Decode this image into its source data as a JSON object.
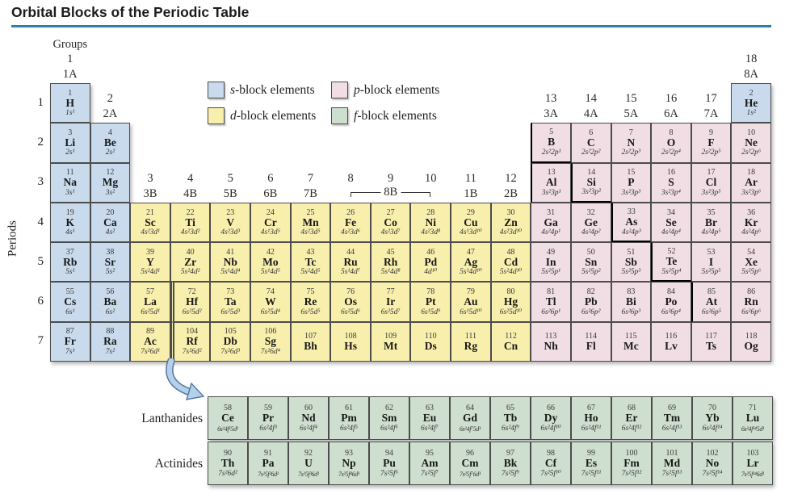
{
  "header": {
    "title": "Orbital Blocks of the Periodic Table"
  },
  "labels": {
    "periods": "Periods",
    "bracket_8b": "8B"
  },
  "colors": {
    "s": "#c8daeb",
    "p": "#f0dee4",
    "d": "#f9efad",
    "f": "#cfdfcf",
    "rule": "#2c80a8",
    "arrow_fill": "#b5d0eb",
    "arrow_outline": "#54779f",
    "staircase": "#000000",
    "cell_border": "#4c4c4c"
  },
  "legend": [
    {
      "prefix": "s",
      "text": "-block elements",
      "block": "s"
    },
    {
      "prefix": "p",
      "text": "-block elements",
      "block": "p"
    },
    {
      "prefix": "d",
      "text": "-block elements",
      "block": "d"
    },
    {
      "prefix": "f",
      "text": "-block elements",
      "block": "f"
    }
  ],
  "period_numbers": [
    "1",
    "2",
    "3",
    "4",
    "5",
    "6",
    "7"
  ],
  "group_headers": [
    {
      "col": 1,
      "lines": [
        "Groups",
        "1",
        "1A"
      ],
      "tier": 1
    },
    {
      "col": 2,
      "lines": [
        "2",
        "2A"
      ],
      "tier": 2
    },
    {
      "col": 3,
      "lines": [
        "3",
        "3B"
      ],
      "tier": 4
    },
    {
      "col": 4,
      "lines": [
        "4",
        "4B"
      ],
      "tier": 4
    },
    {
      "col": 5,
      "lines": [
        "5",
        "5B"
      ],
      "tier": 4
    },
    {
      "col": 6,
      "lines": [
        "6",
        "6B"
      ],
      "tier": 4
    },
    {
      "col": 7,
      "lines": [
        "7",
        "7B"
      ],
      "tier": 4
    },
    {
      "col": 8,
      "lines": [
        "8"
      ],
      "tier": 4
    },
    {
      "col": 9,
      "lines": [
        "9"
      ],
      "tier": 4
    },
    {
      "col": 10,
      "lines": [
        "10"
      ],
      "tier": 4
    },
    {
      "col": 11,
      "lines": [
        "11",
        "1B"
      ],
      "tier": 4
    },
    {
      "col": 12,
      "lines": [
        "12",
        "2B"
      ],
      "tier": 4
    },
    {
      "col": 13,
      "lines": [
        "13",
        "3A"
      ],
      "tier": 2
    },
    {
      "col": 14,
      "lines": [
        "14",
        "4A"
      ],
      "tier": 2
    },
    {
      "col": 15,
      "lines": [
        "15",
        "5A"
      ],
      "tier": 2
    },
    {
      "col": 16,
      "lines": [
        "16",
        "6A"
      ],
      "tier": 2
    },
    {
      "col": 17,
      "lines": [
        "17",
        "7A"
      ],
      "tier": 2
    },
    {
      "col": 18,
      "lines": [
        "18",
        "8A"
      ],
      "tier": 1
    }
  ],
  "bracket": {
    "label": "8B",
    "from_col": 8,
    "to_col": 10
  },
  "elements": [
    {
      "n": 1,
      "s": "H",
      "c": "1s¹",
      "p": 1,
      "g": 1,
      "b": "s"
    },
    {
      "n": 2,
      "s": "He",
      "c": "1s²",
      "p": 1,
      "g": 18,
      "b": "s"
    },
    {
      "n": 3,
      "s": "Li",
      "c": "2s¹",
      "p": 2,
      "g": 1,
      "b": "s"
    },
    {
      "n": 4,
      "s": "Be",
      "c": "2s²",
      "p": 2,
      "g": 2,
      "b": "s"
    },
    {
      "n": 5,
      "s": "B",
      "c": "2s²2p¹",
      "p": 2,
      "g": 13,
      "b": "p",
      "e": "lb"
    },
    {
      "n": 6,
      "s": "C",
      "c": "2s²2p²",
      "p": 2,
      "g": 14,
      "b": "p"
    },
    {
      "n": 7,
      "s": "N",
      "c": "2s²2p³",
      "p": 2,
      "g": 15,
      "b": "p"
    },
    {
      "n": 8,
      "s": "O",
      "c": "2s²2p⁴",
      "p": 2,
      "g": 16,
      "b": "p"
    },
    {
      "n": 9,
      "s": "F",
      "c": "2s²2p⁵",
      "p": 2,
      "g": 17,
      "b": "p"
    },
    {
      "n": 10,
      "s": "Ne",
      "c": "2s²2p⁶",
      "p": 2,
      "g": 18,
      "b": "p"
    },
    {
      "n": 11,
      "s": "Na",
      "c": "3s¹",
      "p": 3,
      "g": 1,
      "b": "s"
    },
    {
      "n": 12,
      "s": "Mg",
      "c": "3s²",
      "p": 3,
      "g": 2,
      "b": "s"
    },
    {
      "n": 13,
      "s": "Al",
      "c": "3s²3p¹",
      "p": 3,
      "g": 13,
      "b": "p",
      "e": "l"
    },
    {
      "n": 14,
      "s": "Si",
      "c": "3s²3p²",
      "p": 3,
      "g": 14,
      "b": "p",
      "e": "lb"
    },
    {
      "n": 15,
      "s": "P",
      "c": "3s²3p³",
      "p": 3,
      "g": 15,
      "b": "p"
    },
    {
      "n": 16,
      "s": "S",
      "c": "3s²3p⁴",
      "p": 3,
      "g": 16,
      "b": "p"
    },
    {
      "n": 17,
      "s": "Cl",
      "c": "3s²3p⁵",
      "p": 3,
      "g": 17,
      "b": "p"
    },
    {
      "n": 18,
      "s": "Ar",
      "c": "3s²3p⁶",
      "p": 3,
      "g": 18,
      "b": "p"
    },
    {
      "n": 19,
      "s": "K",
      "c": "4s¹",
      "p": 4,
      "g": 1,
      "b": "s"
    },
    {
      "n": 20,
      "s": "Ca",
      "c": "4s²",
      "p": 4,
      "g": 2,
      "b": "s"
    },
    {
      "n": 21,
      "s": "Sc",
      "c": "4s²3d¹",
      "p": 4,
      "g": 3,
      "b": "d"
    },
    {
      "n": 22,
      "s": "Ti",
      "c": "4s²3d²",
      "p": 4,
      "g": 4,
      "b": "d"
    },
    {
      "n": 23,
      "s": "V",
      "c": "4s²3d³",
      "p": 4,
      "g": 5,
      "b": "d"
    },
    {
      "n": 24,
      "s": "Cr",
      "c": "4s¹3d⁵",
      "p": 4,
      "g": 6,
      "b": "d"
    },
    {
      "n": 25,
      "s": "Mn",
      "c": "4s²3d⁵",
      "p": 4,
      "g": 7,
      "b": "d"
    },
    {
      "n": 26,
      "s": "Fe",
      "c": "4s²3d⁶",
      "p": 4,
      "g": 8,
      "b": "d"
    },
    {
      "n": 27,
      "s": "Co",
      "c": "4s²3d⁷",
      "p": 4,
      "g": 9,
      "b": "d"
    },
    {
      "n": 28,
      "s": "Ni",
      "c": "4s²3d⁸",
      "p": 4,
      "g": 10,
      "b": "d"
    },
    {
      "n": 29,
      "s": "Cu",
      "c": "4s¹3d¹⁰",
      "p": 4,
      "g": 11,
      "b": "d"
    },
    {
      "n": 30,
      "s": "Zn",
      "c": "4s²3d¹⁰",
      "p": 4,
      "g": 12,
      "b": "d"
    },
    {
      "n": 31,
      "s": "Ga",
      "c": "4s²4p¹",
      "p": 4,
      "g": 13,
      "b": "p"
    },
    {
      "n": 32,
      "s": "Ge",
      "c": "4s²4p²",
      "p": 4,
      "g": 14,
      "b": "p"
    },
    {
      "n": 33,
      "s": "As",
      "c": "4s²4p³",
      "p": 4,
      "g": 15,
      "b": "p",
      "e": "lb"
    },
    {
      "n": 34,
      "s": "Se",
      "c": "4s²4p⁴",
      "p": 4,
      "g": 16,
      "b": "p"
    },
    {
      "n": 35,
      "s": "Br",
      "c": "4s²4p⁵",
      "p": 4,
      "g": 17,
      "b": "p"
    },
    {
      "n": 36,
      "s": "Kr",
      "c": "4s²4p⁶",
      "p": 4,
      "g": 18,
      "b": "p"
    },
    {
      "n": 37,
      "s": "Rb",
      "c": "5s¹",
      "p": 5,
      "g": 1,
      "b": "s"
    },
    {
      "n": 38,
      "s": "Sr",
      "c": "5s²",
      "p": 5,
      "g": 2,
      "b": "s"
    },
    {
      "n": 39,
      "s": "Y",
      "c": "5s²4d¹",
      "p": 5,
      "g": 3,
      "b": "d"
    },
    {
      "n": 40,
      "s": "Zr",
      "c": "5s²4d²",
      "p": 5,
      "g": 4,
      "b": "d"
    },
    {
      "n": 41,
      "s": "Nb",
      "c": "5s¹4d⁴",
      "p": 5,
      "g": 5,
      "b": "d"
    },
    {
      "n": 42,
      "s": "Mo",
      "c": "5s¹4d⁵",
      "p": 5,
      "g": 6,
      "b": "d"
    },
    {
      "n": 43,
      "s": "Tc",
      "c": "5s²4d⁵",
      "p": 5,
      "g": 7,
      "b": "d"
    },
    {
      "n": 44,
      "s": "Ru",
      "c": "5s¹4d⁷",
      "p": 5,
      "g": 8,
      "b": "d"
    },
    {
      "n": 45,
      "s": "Rh",
      "c": "5s¹4d⁸",
      "p": 5,
      "g": 9,
      "b": "d"
    },
    {
      "n": 46,
      "s": "Pd",
      "c": "4d¹⁰",
      "p": 5,
      "g": 10,
      "b": "d"
    },
    {
      "n": 47,
      "s": "Ag",
      "c": "5s¹4d¹⁰",
      "p": 5,
      "g": 11,
      "b": "d"
    },
    {
      "n": 48,
      "s": "Cd",
      "c": "5s²4d¹⁰",
      "p": 5,
      "g": 12,
      "b": "d"
    },
    {
      "n": 49,
      "s": "In",
      "c": "5s²5p¹",
      "p": 5,
      "g": 13,
      "b": "p"
    },
    {
      "n": 50,
      "s": "Sn",
      "c": "5s²5p²",
      "p": 5,
      "g": 14,
      "b": "p"
    },
    {
      "n": 51,
      "s": "Sb",
      "c": "5s²5p³",
      "p": 5,
      "g": 15,
      "b": "p"
    },
    {
      "n": 52,
      "s": "Te",
      "c": "5s²5p⁴",
      "p": 5,
      "g": 16,
      "b": "p",
      "e": "lb"
    },
    {
      "n": 53,
      "s": "I",
      "c": "5s²5p⁵",
      "p": 5,
      "g": 17,
      "b": "p"
    },
    {
      "n": 54,
      "s": "Xe",
      "c": "5s²5p⁶",
      "p": 5,
      "g": 18,
      "b": "p"
    },
    {
      "n": 55,
      "s": "Cs",
      "c": "6s¹",
      "p": 6,
      "g": 1,
      "b": "s"
    },
    {
      "n": 56,
      "s": "Ba",
      "c": "6s²",
      "p": 6,
      "g": 2,
      "b": "s"
    },
    {
      "n": 57,
      "s": "La",
      "c": "6s²5d¹",
      "p": 6,
      "g": 3,
      "b": "d"
    },
    {
      "n": 72,
      "s": "Hf",
      "c": "6s²5d²",
      "p": 6,
      "g": 4,
      "b": "d",
      "gap": true
    },
    {
      "n": 73,
      "s": "Ta",
      "c": "6s²5d³",
      "p": 6,
      "g": 5,
      "b": "d"
    },
    {
      "n": 74,
      "s": "W",
      "c": "6s²5d⁴",
      "p": 6,
      "g": 6,
      "b": "d"
    },
    {
      "n": 75,
      "s": "Re",
      "c": "6s²5d⁵",
      "p": 6,
      "g": 7,
      "b": "d"
    },
    {
      "n": 76,
      "s": "Os",
      "c": "6s²5d⁶",
      "p": 6,
      "g": 8,
      "b": "d"
    },
    {
      "n": 77,
      "s": "Ir",
      "c": "6s²5d⁷",
      "p": 6,
      "g": 9,
      "b": "d"
    },
    {
      "n": 78,
      "s": "Pt",
      "c": "6s¹5d⁹",
      "p": 6,
      "g": 10,
      "b": "d"
    },
    {
      "n": 79,
      "s": "Au",
      "c": "6s¹5d¹⁰",
      "p": 6,
      "g": 11,
      "b": "d"
    },
    {
      "n": 80,
      "s": "Hg",
      "c": "6s²5d¹⁰",
      "p": 6,
      "g": 12,
      "b": "d"
    },
    {
      "n": 81,
      "s": "Tl",
      "c": "6s²6p¹",
      "p": 6,
      "g": 13,
      "b": "p"
    },
    {
      "n": 82,
      "s": "Pb",
      "c": "6s²6p²",
      "p": 6,
      "g": 14,
      "b": "p"
    },
    {
      "n": 83,
      "s": "Bi",
      "c": "6s²6p³",
      "p": 6,
      "g": 15,
      "b": "p"
    },
    {
      "n": 84,
      "s": "Po",
      "c": "6s²6p⁴",
      "p": 6,
      "g": 16,
      "b": "p"
    },
    {
      "n": 85,
      "s": "At",
      "c": "6s²6p⁵",
      "p": 6,
      "g": 17,
      "b": "p",
      "e": "l"
    },
    {
      "n": 86,
      "s": "Rn",
      "c": "6s²6p⁶",
      "p": 6,
      "g": 18,
      "b": "p"
    },
    {
      "n": 87,
      "s": "Fr",
      "c": "7s¹",
      "p": 7,
      "g": 1,
      "b": "s"
    },
    {
      "n": 88,
      "s": "Ra",
      "c": "7s²",
      "p": 7,
      "g": 2,
      "b": "s"
    },
    {
      "n": 89,
      "s": "Ac",
      "c": "7s²6d¹",
      "p": 7,
      "g": 3,
      "b": "d"
    },
    {
      "n": 104,
      "s": "Rf",
      "c": "7s²6d²",
      "p": 7,
      "g": 4,
      "b": "d",
      "gap": true
    },
    {
      "n": 105,
      "s": "Db",
      "c": "7s²6d³",
      "p": 7,
      "g": 5,
      "b": "d"
    },
    {
      "n": 106,
      "s": "Sg",
      "c": "7s²6d⁴",
      "p": 7,
      "g": 6,
      "b": "d"
    },
    {
      "n": 107,
      "s": "Bh",
      "c": "",
      "p": 7,
      "g": 7,
      "b": "d"
    },
    {
      "n": 108,
      "s": "Hs",
      "c": "",
      "p": 7,
      "g": 8,
      "b": "d"
    },
    {
      "n": 109,
      "s": "Mt",
      "c": "",
      "p": 7,
      "g": 9,
      "b": "d"
    },
    {
      "n": 110,
      "s": "Ds",
      "c": "",
      "p": 7,
      "g": 10,
      "b": "d"
    },
    {
      "n": 111,
      "s": "Rg",
      "c": "",
      "p": 7,
      "g": 11,
      "b": "d"
    },
    {
      "n": 112,
      "s": "Cn",
      "c": "",
      "p": 7,
      "g": 12,
      "b": "d"
    },
    {
      "n": 113,
      "s": "Nh",
      "c": "",
      "p": 7,
      "g": 13,
      "b": "p"
    },
    {
      "n": 114,
      "s": "Fl",
      "c": "",
      "p": 7,
      "g": 14,
      "b": "p"
    },
    {
      "n": 115,
      "s": "Mc",
      "c": "",
      "p": 7,
      "g": 15,
      "b": "p"
    },
    {
      "n": 116,
      "s": "Lv",
      "c": "",
      "p": 7,
      "g": 16,
      "b": "p"
    },
    {
      "n": 117,
      "s": "Ts",
      "c": "",
      "p": 7,
      "g": 17,
      "b": "p"
    },
    {
      "n": 118,
      "s": "Og",
      "c": "",
      "p": 7,
      "g": 18,
      "b": "p"
    }
  ],
  "lanthanides": {
    "label": "Lanthanides",
    "cells": [
      {
        "n": 58,
        "s": "Ce",
        "c": "6s²4f¹5d¹"
      },
      {
        "n": 59,
        "s": "Pr",
        "c": "6s²4f³"
      },
      {
        "n": 60,
        "s": "Nd",
        "c": "6s²4f⁴"
      },
      {
        "n": 61,
        "s": "Pm",
        "c": "6s²4f⁵"
      },
      {
        "n": 62,
        "s": "Sm",
        "c": "6s²4f⁶"
      },
      {
        "n": 63,
        "s": "Eu",
        "c": "6s²4f⁷"
      },
      {
        "n": 64,
        "s": "Gd",
        "c": "6s²4f⁷5d¹"
      },
      {
        "n": 65,
        "s": "Tb",
        "c": "6s²4f⁹"
      },
      {
        "n": 66,
        "s": "Dy",
        "c": "6s²4f¹⁰"
      },
      {
        "n": 67,
        "s": "Ho",
        "c": "6s²4f¹¹"
      },
      {
        "n": 68,
        "s": "Er",
        "c": "6s²4f¹²"
      },
      {
        "n": 69,
        "s": "Tm",
        "c": "6s²4f¹³"
      },
      {
        "n": 70,
        "s": "Yb",
        "c": "6s²4f¹⁴"
      },
      {
        "n": 71,
        "s": "Lu",
        "c": "6s²4f¹⁴5d¹"
      }
    ]
  },
  "actinides": {
    "label": "Actinides",
    "cells": [
      {
        "n": 90,
        "s": "Th",
        "c": "7s²6d²"
      },
      {
        "n": 91,
        "s": "Pa",
        "c": "7s²5f²6d¹"
      },
      {
        "n": 92,
        "s": "U",
        "c": "7s²5f³6d¹"
      },
      {
        "n": 93,
        "s": "Np",
        "c": "7s²5f⁴6d¹"
      },
      {
        "n": 94,
        "s": "Pu",
        "c": "7s²5f⁶"
      },
      {
        "n": 95,
        "s": "Am",
        "c": "7s²5f⁷"
      },
      {
        "n": 96,
        "s": "Cm",
        "c": "7s²5f⁷6d¹"
      },
      {
        "n": 97,
        "s": "Bk",
        "c": "7s²5f⁹"
      },
      {
        "n": 98,
        "s": "Cf",
        "c": "7s²5f¹⁰"
      },
      {
        "n": 99,
        "s": "Es",
        "c": "7s²5f¹¹"
      },
      {
        "n": 100,
        "s": "Fm",
        "c": "7s²5f¹²"
      },
      {
        "n": 101,
        "s": "Md",
        "c": "7s²5f¹³"
      },
      {
        "n": 102,
        "s": "No",
        "c": "7s²5f¹⁴"
      },
      {
        "n": 103,
        "s": "Lr",
        "c": "7s²5f¹⁴6d¹"
      }
    ]
  }
}
